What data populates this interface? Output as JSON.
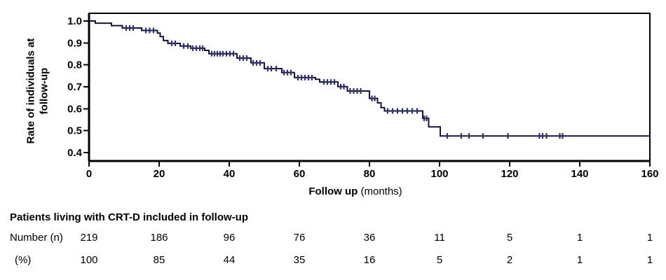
{
  "figure": {
    "y_axis_title_line1": "Rate of individuals at",
    "y_axis_title_line2": "follow-up",
    "x_axis_title_bold": "Follow up",
    "x_axis_title_unit": " (months)"
  },
  "chart_data": {
    "type": "line",
    "variant": "kaplan-meier-step-curve-with-censor-ticks",
    "title": "",
    "xlabel": "Follow up (months)",
    "ylabel": "Rate of individuals at follow-up",
    "xlim": [
      0,
      160
    ],
    "ylim": [
      0.36,
      1.03
    ],
    "x_ticks": [
      0,
      20,
      40,
      60,
      80,
      100,
      120,
      140,
      160
    ],
    "y_ticks": [
      1.0,
      0.9,
      0.8,
      0.7,
      0.6,
      0.5,
      0.4
    ],
    "grid": false,
    "legend": "none",
    "frame": "full-box",
    "line_color": "#16163a",
    "censor_color": "#31316b",
    "series": [
      {
        "name": "Patients living with CRT-D",
        "steps": [
          [
            0,
            1.0
          ],
          [
            1.8,
            0.99
          ],
          [
            6.4,
            0.979
          ],
          [
            9.5,
            0.968
          ],
          [
            15,
            0.957
          ],
          [
            19.5,
            0.945
          ],
          [
            20.3,
            0.929
          ],
          [
            21.2,
            0.911
          ],
          [
            22.5,
            0.898
          ],
          [
            26,
            0.886
          ],
          [
            29,
            0.876
          ],
          [
            33,
            0.866
          ],
          [
            34.2,
            0.851
          ],
          [
            42.2,
            0.831
          ],
          [
            46.2,
            0.809
          ],
          [
            50,
            0.783
          ],
          [
            55,
            0.765
          ],
          [
            58.6,
            0.742
          ],
          [
            64.6,
            0.734
          ],
          [
            65.8,
            0.722
          ],
          [
            71,
            0.701
          ],
          [
            73.7,
            0.681
          ],
          [
            80,
            0.647
          ],
          [
            82.3,
            0.627
          ],
          [
            83.3,
            0.605
          ],
          [
            84.3,
            0.59
          ],
          [
            95.2,
            0.556
          ],
          [
            96.9,
            0.517
          ],
          [
            100.2,
            0.476
          ],
          [
            160,
            0.476
          ]
        ],
        "censor_marks": [
          [
            10.6,
            0.968
          ],
          [
            11.6,
            0.968
          ],
          [
            12.6,
            0.968
          ],
          [
            16.2,
            0.957
          ],
          [
            17.3,
            0.957
          ],
          [
            18.4,
            0.957
          ],
          [
            23.6,
            0.898
          ],
          [
            24.6,
            0.898
          ],
          [
            27.0,
            0.886
          ],
          [
            28.2,
            0.886
          ],
          [
            29.6,
            0.876
          ],
          [
            30.6,
            0.876
          ],
          [
            31.6,
            0.876
          ],
          [
            32.4,
            0.876
          ],
          [
            35.0,
            0.851
          ],
          [
            35.8,
            0.851
          ],
          [
            36.6,
            0.851
          ],
          [
            37.4,
            0.851
          ],
          [
            38.2,
            0.851
          ],
          [
            39.2,
            0.851
          ],
          [
            40.2,
            0.851
          ],
          [
            41.2,
            0.851
          ],
          [
            43.0,
            0.831
          ],
          [
            44.0,
            0.831
          ],
          [
            45.0,
            0.831
          ],
          [
            46.8,
            0.809
          ],
          [
            47.8,
            0.809
          ],
          [
            48.8,
            0.809
          ],
          [
            51.0,
            0.783
          ],
          [
            52.0,
            0.783
          ],
          [
            53.4,
            0.783
          ],
          [
            55.6,
            0.765
          ],
          [
            56.6,
            0.765
          ],
          [
            57.6,
            0.765
          ],
          [
            59.6,
            0.742
          ],
          [
            60.6,
            0.742
          ],
          [
            61.6,
            0.742
          ],
          [
            62.6,
            0.742
          ],
          [
            63.6,
            0.742
          ],
          [
            67.0,
            0.722
          ],
          [
            68.0,
            0.722
          ],
          [
            69.0,
            0.722
          ],
          [
            70.0,
            0.722
          ],
          [
            71.8,
            0.701
          ],
          [
            72.7,
            0.701
          ],
          [
            74.5,
            0.681
          ],
          [
            75.5,
            0.681
          ],
          [
            76.5,
            0.681
          ],
          [
            77.5,
            0.681
          ],
          [
            80.7,
            0.647
          ],
          [
            81.5,
            0.647
          ],
          [
            85.2,
            0.59
          ],
          [
            86.6,
            0.59
          ],
          [
            88.0,
            0.59
          ],
          [
            89.4,
            0.59
          ],
          [
            90.8,
            0.59
          ],
          [
            92.2,
            0.59
          ],
          [
            93.6,
            0.59
          ],
          [
            95.6,
            0.556
          ],
          [
            96.3,
            0.556
          ],
          [
            102.2,
            0.476
          ],
          [
            106.2,
            0.476
          ],
          [
            108.4,
            0.476
          ],
          [
            112.4,
            0.476
          ],
          [
            119.5,
            0.476
          ],
          [
            128.5,
            0.476
          ],
          [
            129.4,
            0.476
          ],
          [
            130.5,
            0.476
          ],
          [
            134.3,
            0.476
          ],
          [
            135.1,
            0.476
          ]
        ]
      }
    ]
  },
  "table": {
    "title": "Patients living with CRT-D included in follow-up",
    "row_number_label": "Number (n)",
    "row_percent_label": "(%)",
    "columns_months": [
      0,
      20,
      40,
      60,
      80,
      100,
      120,
      140,
      160
    ],
    "number_values": [
      219,
      186,
      96,
      76,
      36,
      11,
      5,
      1,
      1
    ],
    "percent_values": [
      100,
      85,
      44,
      35,
      16,
      5,
      2,
      1,
      1
    ]
  }
}
